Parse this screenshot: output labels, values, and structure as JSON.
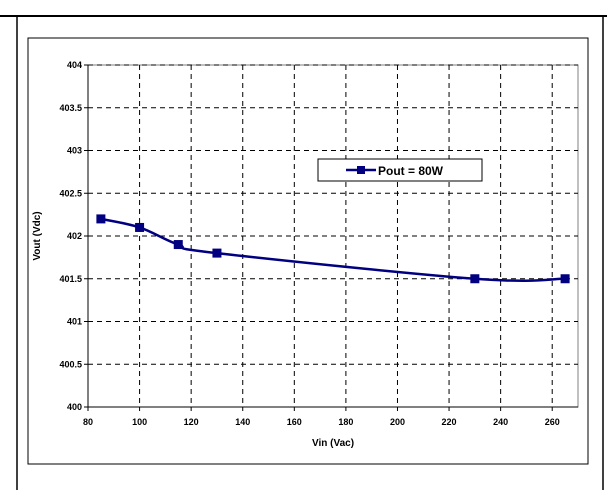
{
  "chart_data": {
    "type": "line",
    "title": "",
    "xlabel": "Vin (Vac)",
    "ylabel": "Vout (Vdc)",
    "xlim": [
      80,
      270
    ],
    "ylim": [
      400,
      404
    ],
    "x_ticks": [
      "80",
      "100",
      "120",
      "140",
      "160",
      "180",
      "200",
      "220",
      "240",
      "260"
    ],
    "y_ticks": [
      "400",
      "400.5",
      "401",
      "401.5",
      "402",
      "402.5",
      "403",
      "403.5",
      "404"
    ],
    "grid": true,
    "grid_style": "dashed",
    "legend_position": "center-right",
    "series": [
      {
        "name": "Pout = 80W",
        "color": "#000080",
        "marker": "square",
        "x": [
          85,
          100,
          115,
          130,
          230,
          265
        ],
        "y": [
          402.2,
          402.1,
          401.9,
          401.8,
          401.5,
          401.5
        ]
      }
    ]
  }
}
